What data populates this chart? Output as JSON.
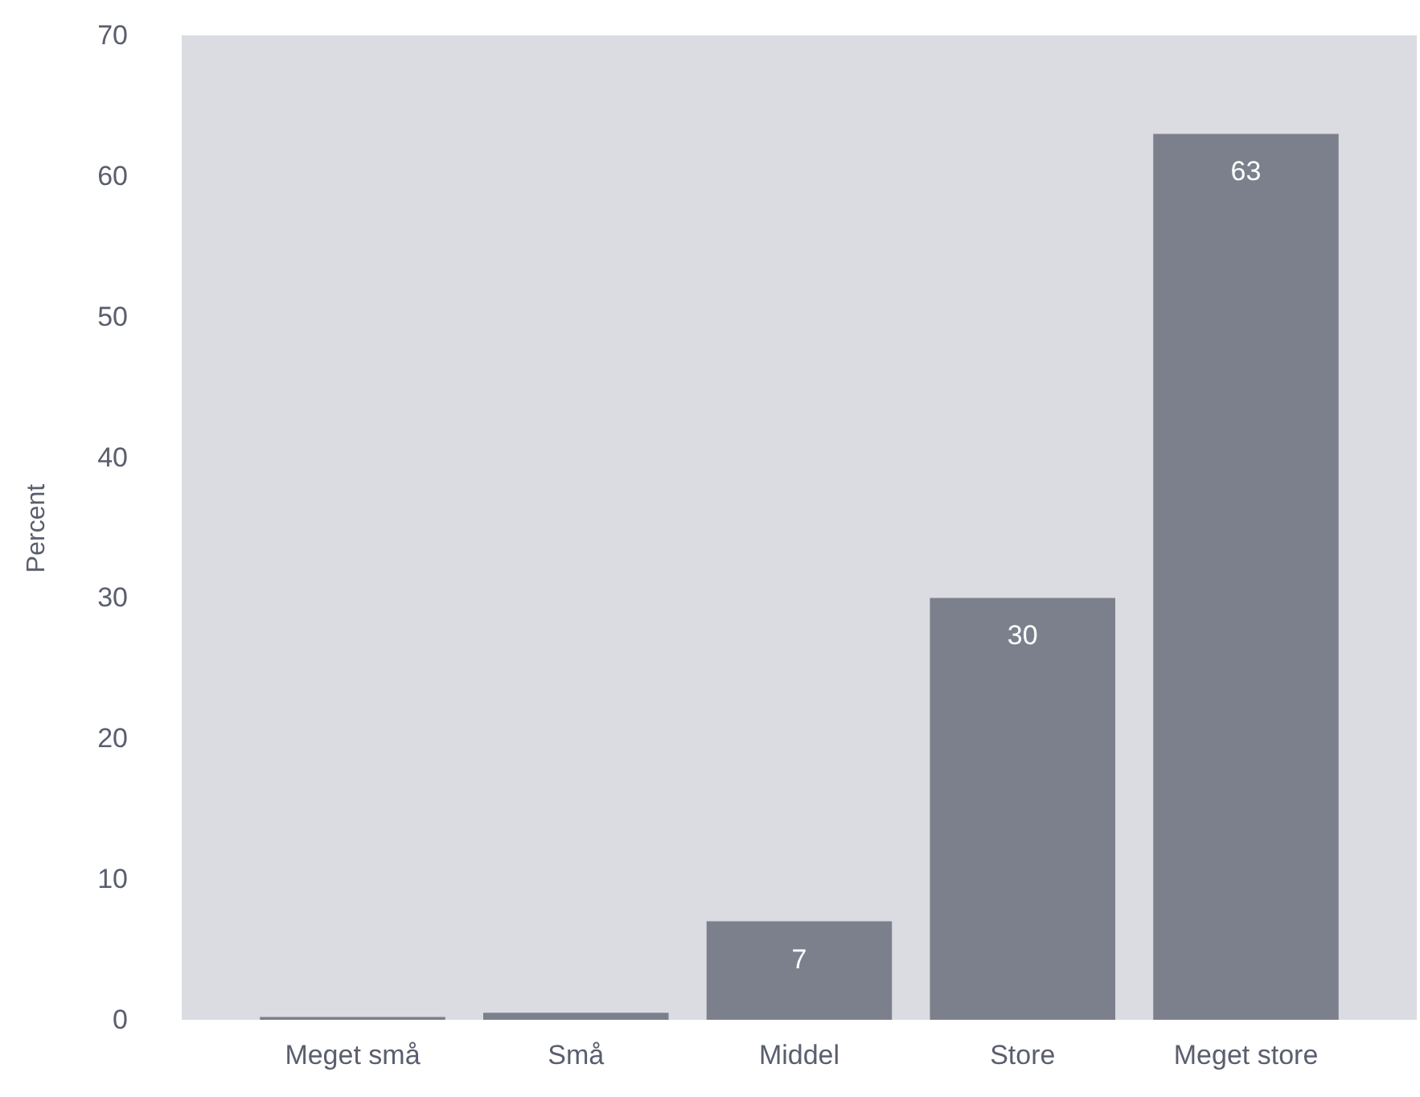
{
  "chart_data": {
    "type": "bar",
    "ylabel": "Percent",
    "categories": [
      "Meget små",
      "Små",
      "Middel",
      "Store",
      "Meget store"
    ],
    "values": [
      0.2,
      0.5,
      7,
      30,
      63
    ],
    "value_labels": [
      null,
      null,
      "7",
      "30",
      "63"
    ],
    "color": "#7b808c",
    "ylim": [
      0,
      70
    ],
    "yticks": [
      0,
      10,
      20,
      30,
      40,
      50,
      60,
      70
    ],
    "grid": false
  }
}
